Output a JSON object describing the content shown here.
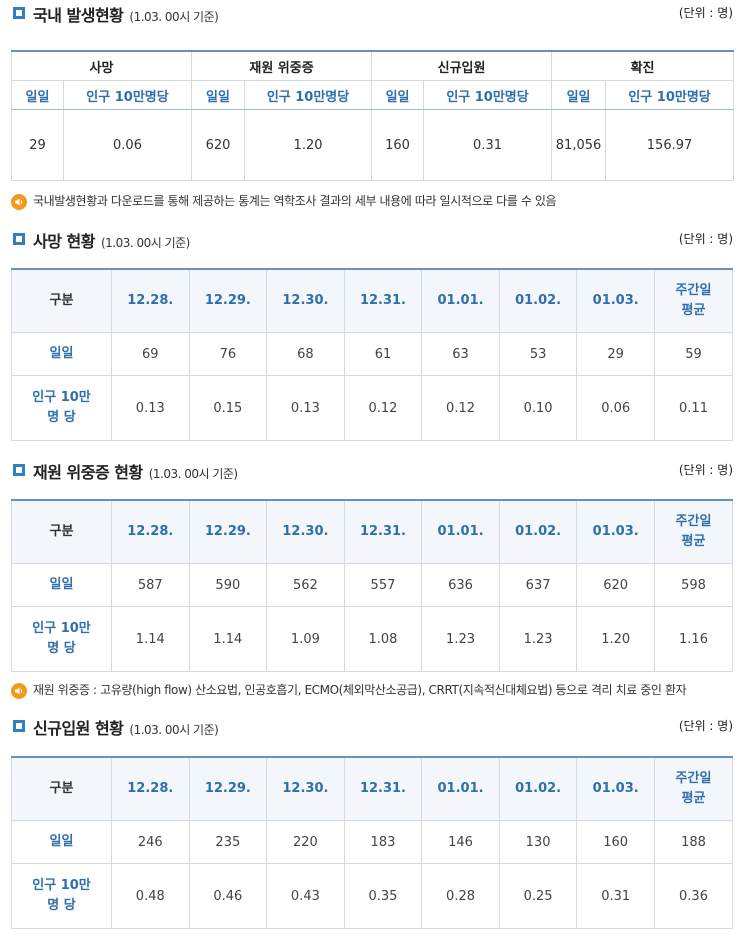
{
  "domestic": {
    "title": "국내 발생현황",
    "subtitle": "(1.03. 00시 기준)",
    "unit": "(단위 : 명)",
    "groups": [
      "사망",
      "재원 위중증",
      "신규입원",
      "확진"
    ],
    "sub_headers": [
      "일일",
      "인구 10만명당"
    ],
    "values": [
      "29",
      "0.06",
      "620",
      "1.20",
      "160",
      "0.31",
      "81,056",
      "156.97"
    ],
    "note": "국내발생현황과 다운로드를 통해 제공하는 통계는 역학조사 결과의 세부 내용에 따라 일시적으로 다를 수 있음"
  },
  "deaths": {
    "title": "사망 현황",
    "subtitle": "(1.03. 00시 기준)",
    "unit": "(단위 : 명)",
    "headers": [
      "구분",
      "12.28.",
      "12.29.",
      "12.30.",
      "12.31.",
      "01.01.",
      "01.02.",
      "01.03.",
      "주간일",
      "평균"
    ],
    "row1_label": "일일",
    "row1": [
      "69",
      "76",
      "68",
      "61",
      "63",
      "53",
      "29",
      "59"
    ],
    "row2_label_a": "인구 10만",
    "row2_label_b": "명 당",
    "row2": [
      "0.13",
      "0.15",
      "0.13",
      "0.12",
      "0.12",
      "0.10",
      "0.06",
      "0.11"
    ]
  },
  "critical": {
    "title": "재원 위중증 현황",
    "subtitle": "(1.03. 00시 기준)",
    "unit": "(단위 : 명)",
    "headers": [
      "구분",
      "12.28.",
      "12.29.",
      "12.30.",
      "12.31.",
      "01.01.",
      "01.02.",
      "01.03.",
      "주간일",
      "평균"
    ],
    "row1_label": "일일",
    "row1": [
      "587",
      "590",
      "562",
      "557",
      "636",
      "637",
      "620",
      "598"
    ],
    "row2_label_a": "인구 10만",
    "row2_label_b": "명 당",
    "row2": [
      "1.14",
      "1.14",
      "1.09",
      "1.08",
      "1.23",
      "1.23",
      "1.20",
      "1.16"
    ],
    "note": "재원 위중증 : 고유량(high flow) 산소요법, 인공호흡기, ECMO(체외막산소공급), CRRT(지속적신대체요법) 등으로 격리 치료 중인 환자"
  },
  "admissions": {
    "title": "신규입원 현황",
    "subtitle": "(1.03. 00시 기준)",
    "unit": "(단위 : 명)",
    "headers": [
      "구분",
      "12.28.",
      "12.29.",
      "12.30.",
      "12.31.",
      "01.01.",
      "01.02.",
      "01.03.",
      "주간일",
      "평균"
    ],
    "row1_label": "일일",
    "row1": [
      "246",
      "235",
      "220",
      "183",
      "146",
      "130",
      "160",
      "188"
    ],
    "row2_label_a": "인구 10만",
    "row2_label_b": "명 당",
    "row2": [
      "0.48",
      "0.46",
      "0.43",
      "0.35",
      "0.28",
      "0.25",
      "0.31",
      "0.36"
    ]
  },
  "colors": {
    "accent": "#2f7fc1",
    "header_text": "#2f6fae",
    "notice_icon": "#f39a1e"
  },
  "icons": {
    "section_marker": "square-bullet-icon",
    "notice": "speaker-icon"
  }
}
